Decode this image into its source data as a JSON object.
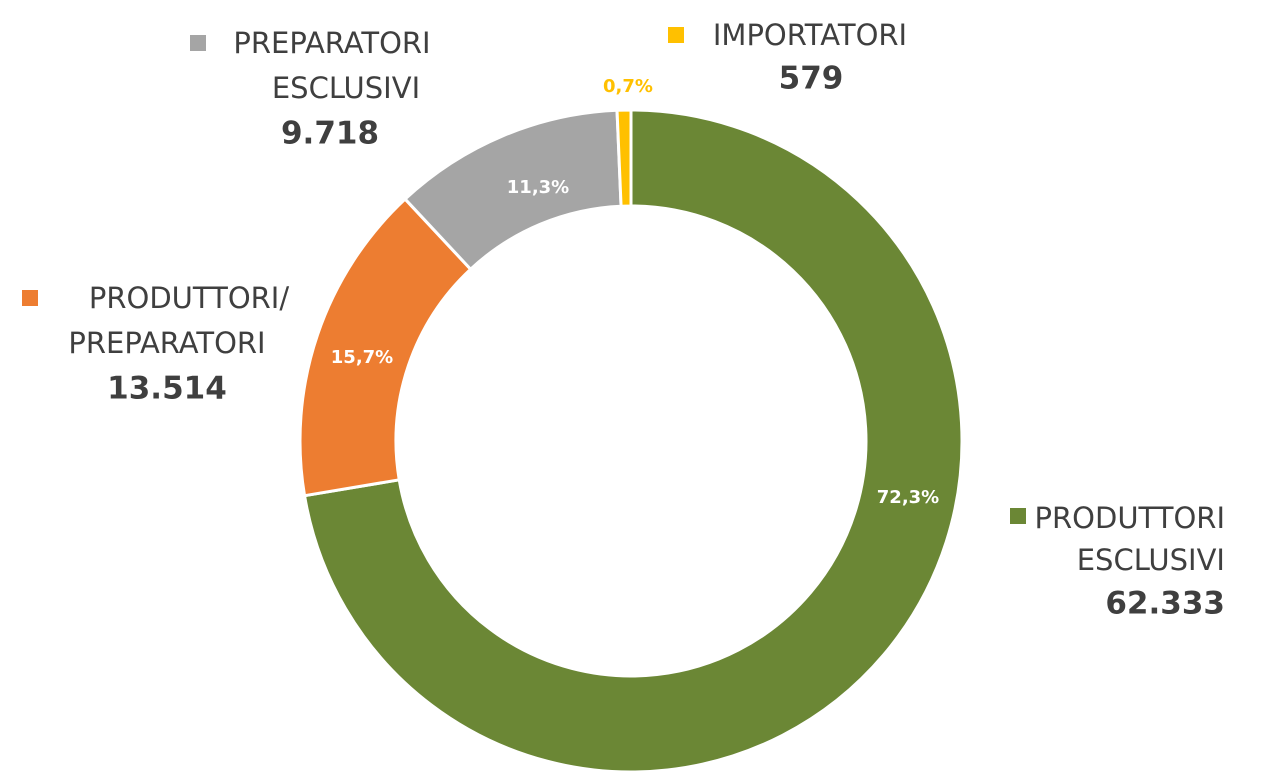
{
  "chart_data": {
    "type": "donut",
    "categories": [
      [
        "PRODUTTORI",
        "ESCLUSIVI"
      ],
      [
        "PRODUTTORI/",
        "PREPARATORI"
      ],
      [
        "PREPARATORI",
        "ESCLUSIVI"
      ],
      [
        "IMPORTATORI"
      ]
    ],
    "values": [
      62333,
      13514,
      9718,
      579
    ],
    "value_labels": [
      "62.333",
      "13.514",
      "9.718",
      "579"
    ],
    "percentages": [
      72.3,
      15.7,
      11.3,
      0.7
    ],
    "percentage_labels": [
      "72,3%",
      "15,7%",
      "11,3%",
      "0,7%"
    ],
    "colors": [
      "#6b8735",
      "#ed7d31",
      "#a5a5a5",
      "#ffc000"
    ]
  }
}
